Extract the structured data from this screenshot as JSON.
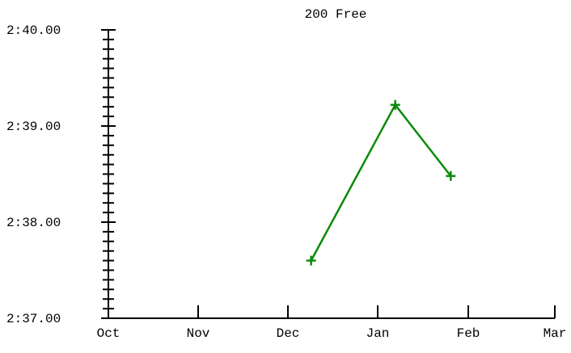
{
  "chart_data": {
    "type": "line",
    "title": "200 Free",
    "xlabel": "",
    "ylabel": "",
    "x_ticks": [
      "Oct",
      "Nov",
      "Dec",
      "Jan",
      "Feb",
      "Mar"
    ],
    "y_ticks": [
      "2:37.00",
      "2:38.00",
      "2:39.00",
      "2:40.00"
    ],
    "ylim_seconds": [
      157.0,
      160.0
    ],
    "y_minor_tick_step_seconds": 0.1,
    "series": [
      {
        "color": "#0a8a0a",
        "marker": "plus",
        "points": [
          {
            "date": "Dec 9",
            "time": "2:37.60"
          },
          {
            "date": "Jan 7",
            "time": "2:39.22"
          },
          {
            "date": "Jan 26",
            "time": "2:38.48"
          }
        ]
      }
    ],
    "grid": false,
    "legend": "none"
  }
}
